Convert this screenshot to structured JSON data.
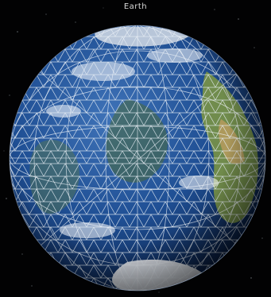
{
  "window": {
    "title": "Earth"
  },
  "scene": {
    "object": "earth-globe",
    "wireframe_color": "#e6eef5",
    "ocean_color": "#1d4d8f",
    "land_color": "#6f8f3e",
    "ice_color": "#e6e9ee",
    "background_color": "#020203"
  }
}
